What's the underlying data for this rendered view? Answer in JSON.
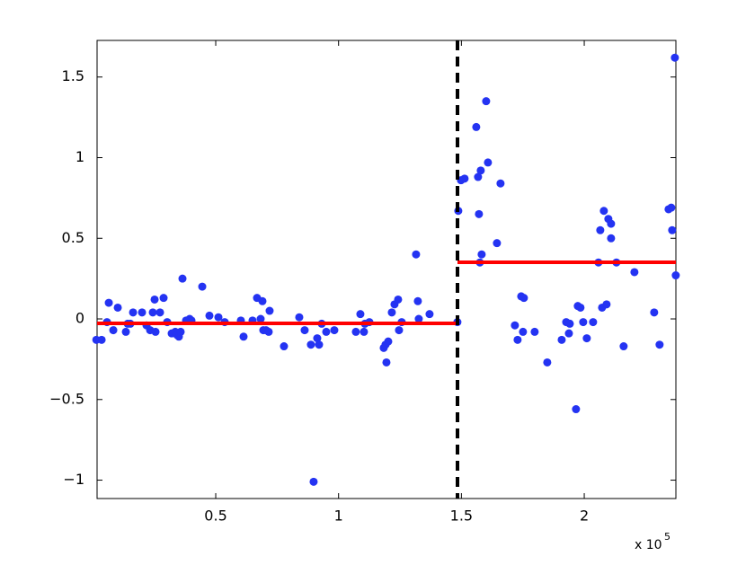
{
  "chart_data": {
    "type": "scatter",
    "x": [
      1400,
      3550,
      5740,
      6470,
      8300,
      10130,
      13420,
      14150,
      15250,
      16350,
      20000,
      21830,
      23300,
      24390,
      25120,
      25490,
      27320,
      28780,
      30240,
      32070,
      33530,
      34270,
      35000,
      35730,
      36460,
      37920,
      39390,
      40120,
      44510,
      47430,
      51090,
      53650,
      60230,
      61330,
      64980,
      66810,
      68280,
      69010,
      69370,
      70470,
      71570,
      71930,
      77780,
      84000,
      86200,
      88750,
      89850,
      91310,
      92050,
      93140,
      94970,
      98260,
      107040,
      108870,
      110330,
      110700,
      112530,
      118380,
      119110,
      119480,
      120210,
      121670,
      122770,
      124230,
      124600,
      125690,
      131540,
      132270,
      132640,
      137030,
      148360,
      148730,
      149830,
      151290,
      156040,
      156770,
      157140,
      157510,
      157870,
      158240,
      160070,
      160800,
      164460,
      165920,
      171770,
      172870,
      174330,
      175430,
      175060,
      179820,
      184940,
      190820,
      192650,
      193750,
      194120,
      196640,
      197370,
      198470,
      199570,
      201030,
      203590,
      205780,
      206520,
      207250,
      207980,
      209080,
      209810,
      210910,
      210910,
      213100,
      216030,
      220420,
      228460,
      230660,
      234320,
      235420,
      235780,
      236880,
      237250
    ],
    "values": [
      -0.13,
      -0.13,
      -0.02,
      0.1,
      -0.07,
      0.07,
      -0.08,
      -0.03,
      -0.03,
      0.04,
      0.04,
      -0.04,
      -0.07,
      0.04,
      0.12,
      -0.08,
      0.04,
      0.13,
      -0.02,
      -0.09,
      -0.08,
      -0.1,
      -0.11,
      -0.08,
      0.25,
      -0.01,
      0.0,
      -0.01,
      0.2,
      0.02,
      0.01,
      -0.02,
      -0.01,
      -0.11,
      -0.01,
      0.13,
      0.0,
      0.11,
      -0.07,
      -0.07,
      -0.08,
      0.05,
      -0.17,
      0.01,
      -0.07,
      -0.16,
      -1.01,
      -0.12,
      -0.16,
      -0.03,
      -0.08,
      -0.07,
      -0.08,
      0.03,
      -0.08,
      -0.03,
      -0.02,
      -0.18,
      -0.16,
      -0.27,
      -0.14,
      0.04,
      0.09,
      0.12,
      -0.07,
      -0.02,
      0.4,
      0.11,
      0.0,
      0.03,
      -0.02,
      0.67,
      0.86,
      0.87,
      1.19,
      0.88,
      0.65,
      0.35,
      0.92,
      0.4,
      1.35,
      0.97,
      0.47,
      0.84,
      -0.04,
      -0.13,
      0.14,
      0.13,
      -0.08,
      -0.08,
      -0.27,
      -0.13,
      -0.02,
      -0.09,
      -0.03,
      -0.56,
      0.08,
      0.07,
      -0.02,
      -0.12,
      -0.02,
      0.35,
      0.55,
      0.07,
      0.67,
      0.09,
      0.62,
      0.59,
      0.5,
      0.35,
      -0.17,
      0.29,
      0.04,
      -0.16,
      0.68,
      0.69,
      0.55,
      1.62,
      0.27
    ],
    "color": "#2433f2",
    "segments": [
      {
        "x": [
          1700,
          148400
        ],
        "y": [
          -0.028,
          -0.028
        ],
        "color": "#ff0000"
      },
      {
        "x": [
          148400,
          237300
        ],
        "y": [
          0.351,
          0.351
        ],
        "color": "#ff0000"
      }
    ],
    "changepoint_x": 148400,
    "xlim": [
      1700,
      237300
    ],
    "ylim": [
      -1.114,
      1.727
    ],
    "xticks": [
      {
        "value": 50000,
        "label": "0.5"
      },
      {
        "value": 100000,
        "label": "1"
      },
      {
        "value": 150000,
        "label": "1.5"
      },
      {
        "value": 200000,
        "label": "2"
      }
    ],
    "yticks": [
      {
        "value": -1,
        "label": "−1"
      },
      {
        "value": -0.5,
        "label": "−0.5"
      },
      0,
      0.5,
      1,
      1.5
    ],
    "x_multiplier": "x 10",
    "x_exponent": "5"
  }
}
